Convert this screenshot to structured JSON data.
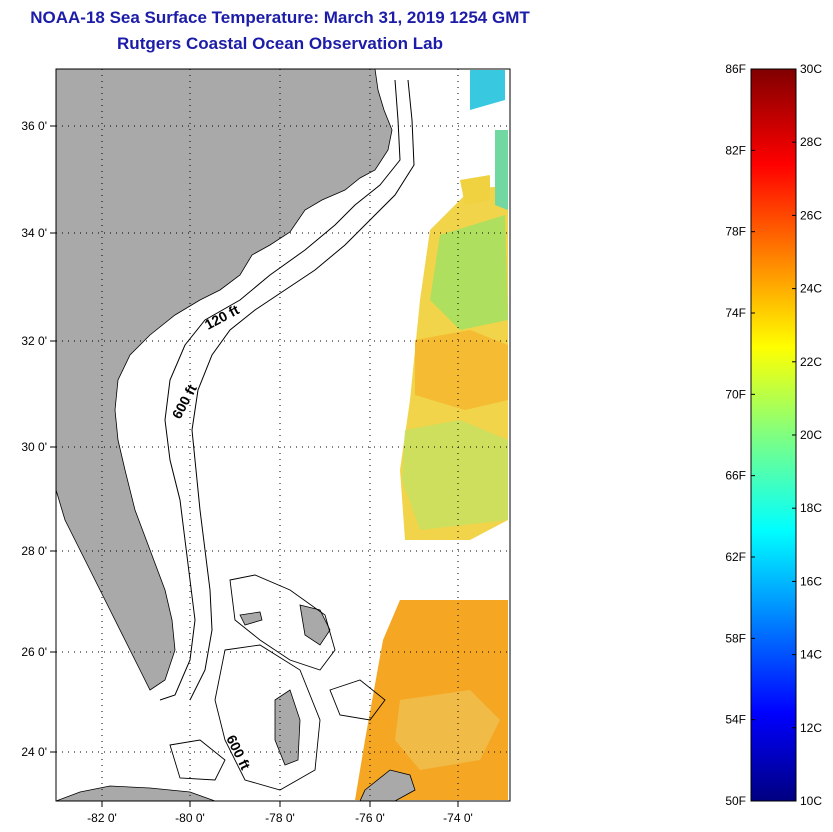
{
  "title": "NOAA-18 Sea Surface Temperature:  March 31, 2019 1254 GMT",
  "subtitle": "Rutgers Coastal Ocean Observation Lab",
  "map": {
    "lat_labels": [
      "36 0'",
      "34 0'",
      "32 0'",
      "30 0'",
      "28 0'",
      "26 0'",
      "24 0'"
    ],
    "lon_labels": [
      "-82 0'",
      "-80 0'",
      "-78 0'",
      "-76 0'",
      "-74 0'"
    ],
    "contour_labels": [
      "120 ft",
      "600 ft",
      "600 ft"
    ]
  },
  "colorbar": {
    "fahrenheit": [
      "86F",
      "82F",
      "78F",
      "74F",
      "70F",
      "66F",
      "62F",
      "58F",
      "54F",
      "50F"
    ],
    "celsius": [
      "30C",
      "28C",
      "26C",
      "24C",
      "22C",
      "20C",
      "18C",
      "16C",
      "14C",
      "12C",
      "10C"
    ]
  },
  "colors": {
    "title": "#1c1ca8",
    "land": "#a9a9a9",
    "sst_warm": "#f5a623",
    "sst_mid": "#f0d240",
    "sst_cool": "#a6e060"
  }
}
